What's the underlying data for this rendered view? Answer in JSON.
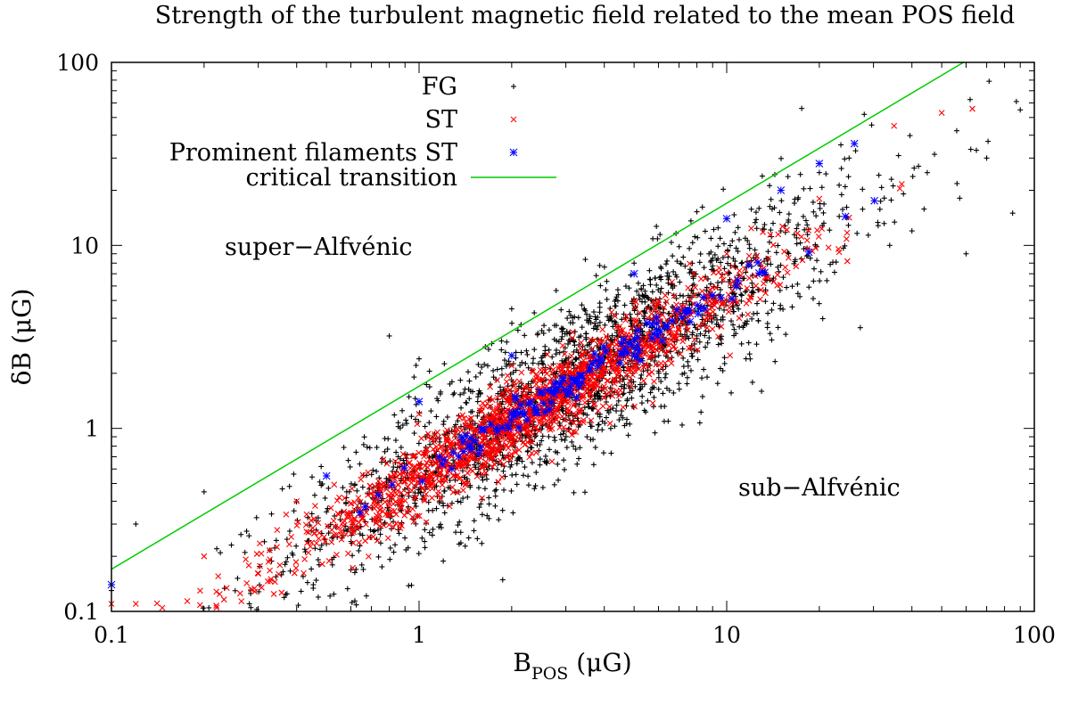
{
  "chart_data": {
    "type": "scatter",
    "title": "Strength of the turbulent magnetic field related to the mean POS field",
    "xlabel_main": "B",
    "xlabel_sub": "POS",
    "xlabel_unit": " (μG)",
    "ylabel": "δB (μG)",
    "xscale": "log",
    "yscale": "log",
    "xlim": [
      0.1,
      100
    ],
    "ylim": [
      0.1,
      100
    ],
    "x_ticks": [
      0.1,
      1,
      10,
      100
    ],
    "x_tick_labels": [
      "0.1",
      "1",
      "10",
      "100"
    ],
    "y_ticks": [
      0.1,
      1,
      10,
      100
    ],
    "y_tick_labels": [
      "0.1",
      "1",
      "10",
      "100"
    ],
    "grid": false,
    "legend_position": "top-left",
    "annotations": [
      {
        "text": "super−Alfvénic",
        "x": 0.37,
        "y": 9.5
      },
      {
        "text": "sub−Alfvénic",
        "x": 5.3,
        "y": 0.65
      }
    ],
    "series": [
      {
        "name": "FG",
        "marker": "plus",
        "color": "#000000",
        "count": 2200,
        "description_params": {
          "x_log_center": 0.5,
          "x_log_sd": 0.45,
          "slope": 1.0,
          "ratio_log_median": -0.25,
          "ratio_log_sd": 0.22
        }
      },
      {
        "name": "ST",
        "marker": "cross",
        "color": "#ff0000",
        "count": 1600,
        "description_params": {
          "x_log_center": 0.35,
          "x_log_sd": 0.4,
          "slope": 1.0,
          "ratio_log_median": -0.27,
          "ratio_log_sd": 0.1
        }
      },
      {
        "name": "Prominent filaments ST",
        "marker": "asterisk",
        "color": "#0000ff",
        "count": 150,
        "description_params": {
          "x_log_center": 0.5,
          "x_log_sd": 0.3,
          "slope": 1.0,
          "ratio_log_median": -0.25,
          "ratio_log_sd": 0.04
        }
      },
      {
        "name": "critical transition",
        "type": "line",
        "color": "#00cc00",
        "x": [
          0.1,
          100
        ],
        "y": [
          0.17,
          170
        ]
      }
    ],
    "sample_points": {
      "FG": [
        [
          0.1,
          0.13
        ],
        [
          0.12,
          0.3
        ],
        [
          0.2,
          0.45
        ],
        [
          0.5,
          0.35
        ],
        [
          0.8,
          3.2
        ],
        [
          1,
          2.4
        ],
        [
          2,
          4.5
        ],
        [
          3,
          1.2
        ],
        [
          5,
          8
        ],
        [
          8,
          3.1
        ],
        [
          10,
          5
        ],
        [
          15,
          12
        ],
        [
          20,
          25
        ],
        [
          25,
          30
        ],
        [
          40,
          12
        ],
        [
          60,
          9
        ],
        [
          70,
          30
        ],
        [
          90,
          55
        ],
        [
          85,
          15
        ],
        [
          28,
          52
        ]
      ],
      "ST": [
        [
          0.1,
          0.11
        ],
        [
          0.12,
          0.11
        ],
        [
          0.2,
          0.2
        ],
        [
          0.4,
          0.4
        ],
        [
          1,
          1.2
        ],
        [
          2,
          2.2
        ],
        [
          5,
          5
        ],
        [
          10,
          9
        ],
        [
          20,
          18
        ],
        [
          35,
          45
        ],
        [
          50,
          53
        ]
      ],
      "Prominent filaments ST": [
        [
          0.1,
          0.14
        ],
        [
          0.5,
          0.55
        ],
        [
          1,
          1.4
        ],
        [
          2,
          2.5
        ],
        [
          5,
          7
        ],
        [
          10,
          14
        ],
        [
          15,
          20
        ],
        [
          20,
          28
        ],
        [
          26,
          36
        ]
      ]
    }
  }
}
